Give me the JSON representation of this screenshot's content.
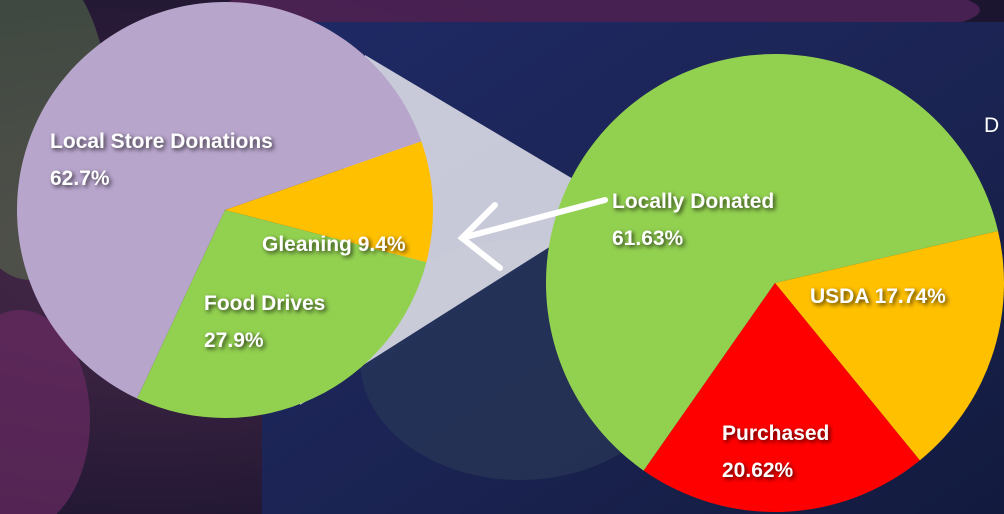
{
  "slide_title": "D",
  "chart_data": [
    {
      "type": "pie",
      "categories": [
        "Local Store Donations",
        "Gleaning",
        "Food Drives"
      ],
      "values": [
        62.7,
        9.4,
        27.9
      ],
      "value_labels": [
        "62.7%",
        "9.4%",
        "27.9%"
      ],
      "colors": [
        "#b8a5cc",
        "#ffc000",
        "#92d050"
      ]
    },
    {
      "type": "pie",
      "categories": [
        "Locally Donated",
        "USDA",
        "Purchased"
      ],
      "values": [
        61.63,
        17.74,
        20.62
      ],
      "value_labels": [
        "61.63%",
        "17.74%",
        "20.62%"
      ],
      "colors": [
        "#92d050",
        "#ffc000",
        "#ff0000"
      ]
    }
  ]
}
